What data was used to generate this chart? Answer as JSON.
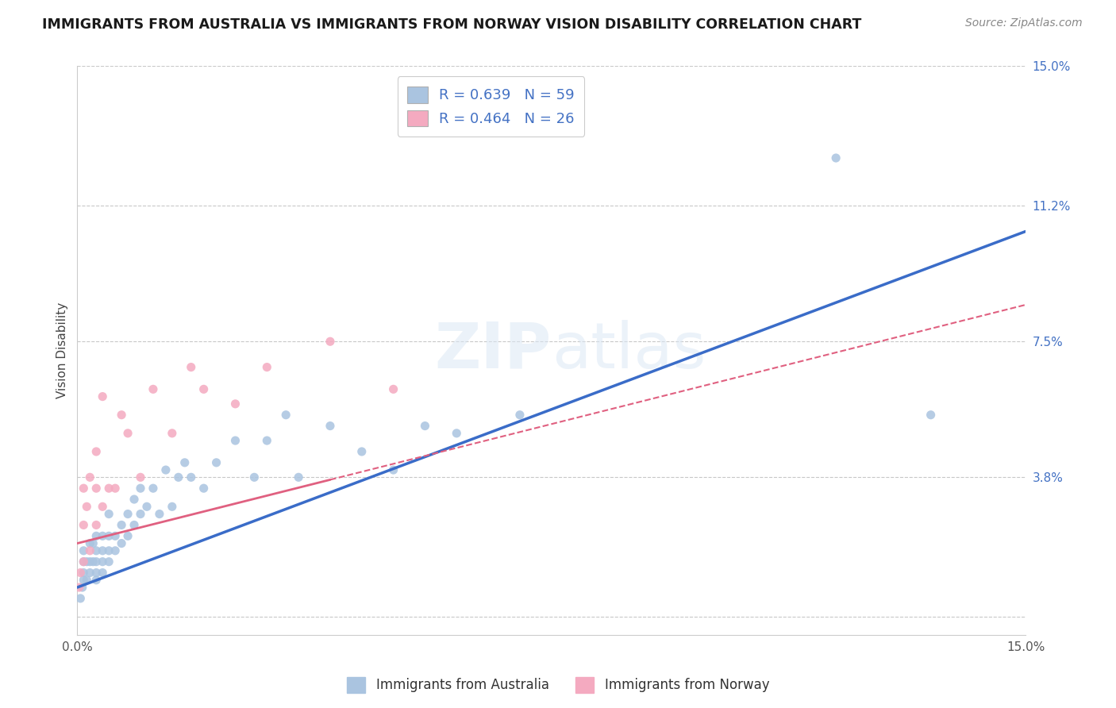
{
  "title": "IMMIGRANTS FROM AUSTRALIA VS IMMIGRANTS FROM NORWAY VISION DISABILITY CORRELATION CHART",
  "source": "Source: ZipAtlas.com",
  "ylabel": "Vision Disability",
  "x_min": 0.0,
  "x_max": 0.15,
  "y_min": -0.005,
  "y_max": 0.15,
  "y_ticks": [
    0.0,
    0.038,
    0.075,
    0.112,
    0.15
  ],
  "y_tick_labels": [
    "",
    "3.8%",
    "7.5%",
    "11.2%",
    "15.0%"
  ],
  "x_tick_labels": [
    "0.0%",
    "15.0%"
  ],
  "grid_color": "#c8c8c8",
  "background_color": "#ffffff",
  "aus_color": "#aac4e0",
  "aus_line_color": "#3a6cc8",
  "aus_R": 0.639,
  "aus_N": 59,
  "nor_color": "#f4aac0",
  "nor_line_color": "#e06080",
  "nor_R": 0.464,
  "nor_N": 26,
  "aus_label": "Immigrants from Australia",
  "nor_label": "Immigrants from Norway",
  "aus_x": [
    0.0005,
    0.0008,
    0.001,
    0.001,
    0.001,
    0.001,
    0.0015,
    0.0015,
    0.002,
    0.002,
    0.002,
    0.0025,
    0.0025,
    0.003,
    0.003,
    0.003,
    0.003,
    0.003,
    0.004,
    0.004,
    0.004,
    0.004,
    0.005,
    0.005,
    0.005,
    0.005,
    0.006,
    0.006,
    0.007,
    0.007,
    0.008,
    0.008,
    0.009,
    0.009,
    0.01,
    0.01,
    0.011,
    0.012,
    0.013,
    0.014,
    0.015,
    0.016,
    0.017,
    0.018,
    0.02,
    0.022,
    0.025,
    0.028,
    0.03,
    0.033,
    0.035,
    0.04,
    0.045,
    0.05,
    0.055,
    0.06,
    0.07,
    0.12,
    0.135
  ],
  "aus_y": [
    0.005,
    0.008,
    0.01,
    0.012,
    0.015,
    0.018,
    0.01,
    0.015,
    0.012,
    0.015,
    0.02,
    0.015,
    0.02,
    0.01,
    0.012,
    0.015,
    0.018,
    0.022,
    0.012,
    0.015,
    0.018,
    0.022,
    0.015,
    0.018,
    0.022,
    0.028,
    0.018,
    0.022,
    0.02,
    0.025,
    0.022,
    0.028,
    0.025,
    0.032,
    0.028,
    0.035,
    0.03,
    0.035,
    0.028,
    0.04,
    0.03,
    0.038,
    0.042,
    0.038,
    0.035,
    0.042,
    0.048,
    0.038,
    0.048,
    0.055,
    0.038,
    0.052,
    0.045,
    0.04,
    0.052,
    0.05,
    0.055,
    0.125,
    0.055
  ],
  "nor_x": [
    0.0003,
    0.0005,
    0.001,
    0.001,
    0.001,
    0.0015,
    0.002,
    0.002,
    0.003,
    0.003,
    0.003,
    0.004,
    0.004,
    0.005,
    0.006,
    0.007,
    0.008,
    0.01,
    0.012,
    0.015,
    0.018,
    0.02,
    0.025,
    0.03,
    0.04,
    0.05
  ],
  "nor_y": [
    0.008,
    0.012,
    0.015,
    0.025,
    0.035,
    0.03,
    0.018,
    0.038,
    0.025,
    0.035,
    0.045,
    0.03,
    0.06,
    0.035,
    0.035,
    0.055,
    0.05,
    0.038,
    0.062,
    0.05,
    0.068,
    0.062,
    0.058,
    0.068,
    0.075,
    0.062
  ],
  "aus_line_x0": 0.0,
  "aus_line_y0": 0.008,
  "aus_line_x1": 0.15,
  "aus_line_y1": 0.105,
  "nor_line_x0": 0.0,
  "nor_line_y0": 0.02,
  "nor_line_x1": 0.15,
  "nor_line_y1": 0.085
}
